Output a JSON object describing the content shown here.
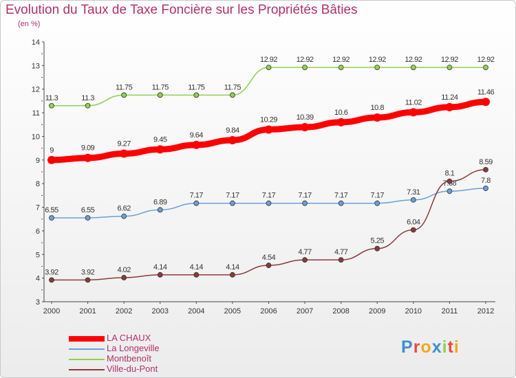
{
  "chart_data": {
    "type": "line",
    "title": "Evolution du Taux de Taxe Foncière sur les Propriétés Bâties",
    "subtitle": "(en %)",
    "xlabel": "",
    "ylabel": "",
    "x": [
      "2000",
      "2001",
      "2002",
      "2003",
      "2004",
      "2005",
      "2006",
      "2007",
      "2008",
      "2009",
      "2010",
      "2011",
      "2012"
    ],
    "ylim": [
      3,
      14
    ],
    "yticks": [
      "3",
      "4",
      "5",
      "6",
      "7",
      "8",
      "9",
      "10",
      "11",
      "12",
      "13",
      "14"
    ],
    "grid": false,
    "legend_position": "bottom-left",
    "series": [
      {
        "name": "Montbenoît",
        "color": "#8fd14f",
        "values": [
          11.3,
          11.3,
          11.75,
          11.75,
          11.75,
          11.75,
          12.92,
          12.92,
          12.92,
          12.92,
          12.92,
          12.92,
          12.92
        ],
        "labels": [
          "11.3",
          "11.3",
          "11.75",
          "11.75",
          "11.75",
          "11.75",
          "12.92",
          "12.92",
          "12.92",
          "12.92",
          "12.92",
          "12.92",
          "12.92"
        ]
      },
      {
        "name": "La Longeville",
        "color": "#6b9fd4",
        "values": [
          6.55,
          6.55,
          6.62,
          6.89,
          7.17,
          7.17,
          7.17,
          7.17,
          7.17,
          7.17,
          7.31,
          7.68,
          7.8
        ],
        "labels": [
          "6.55",
          "6.55",
          "6.62",
          "6.89",
          "7.17",
          "7.17",
          "7.17",
          "7.17",
          "7.17",
          "7.17",
          "7.31",
          "7.68",
          "7.8"
        ]
      },
      {
        "name": "Ville-du-Pont",
        "color": "#8b3a3a",
        "values": [
          3.92,
          3.92,
          4.02,
          4.14,
          4.14,
          4.14,
          4.54,
          4.77,
          4.77,
          5.25,
          6.04,
          8.1,
          8.59
        ],
        "labels": [
          "3.92",
          "3.92",
          "4.02",
          "4.14",
          "4.14",
          "4.14",
          "4.54",
          "4.77",
          "4.77",
          "5.25",
          "6.04",
          "8.1",
          "8.59"
        ]
      },
      {
        "name": "LA CHAUX",
        "color": "#ff0000",
        "values": [
          9,
          9.09,
          9.27,
          9.45,
          9.64,
          9.84,
          10.29,
          10.39,
          10.6,
          10.8,
          11.02,
          11.24,
          11.46
        ],
        "labels": [
          "9",
          "9.09",
          "9.27",
          "9.45",
          "9.64",
          "9.84",
          "10.29",
          "10.39",
          "10.6",
          "10.8",
          "11.02",
          "11.24",
          "11.46"
        ]
      }
    ]
  },
  "legend": [
    {
      "label": "LA CHAUX",
      "color": "#ff0000"
    },
    {
      "label": "La Longeville",
      "color": "#6b9fd4"
    },
    {
      "label": "Montbenoît",
      "color": "#8fd14f"
    },
    {
      "label": "Ville-du-Pont",
      "color": "#8b3a3a"
    }
  ],
  "logo": {
    "letters": [
      "P",
      "r",
      "o",
      "x",
      "i",
      "t",
      "i"
    ],
    "colors": [
      "#3b8fd6",
      "#e84c3d",
      "#f2a81d",
      "#3b8fd6",
      "#8fd14f",
      "#e84c3d",
      "#f2a81d"
    ]
  }
}
